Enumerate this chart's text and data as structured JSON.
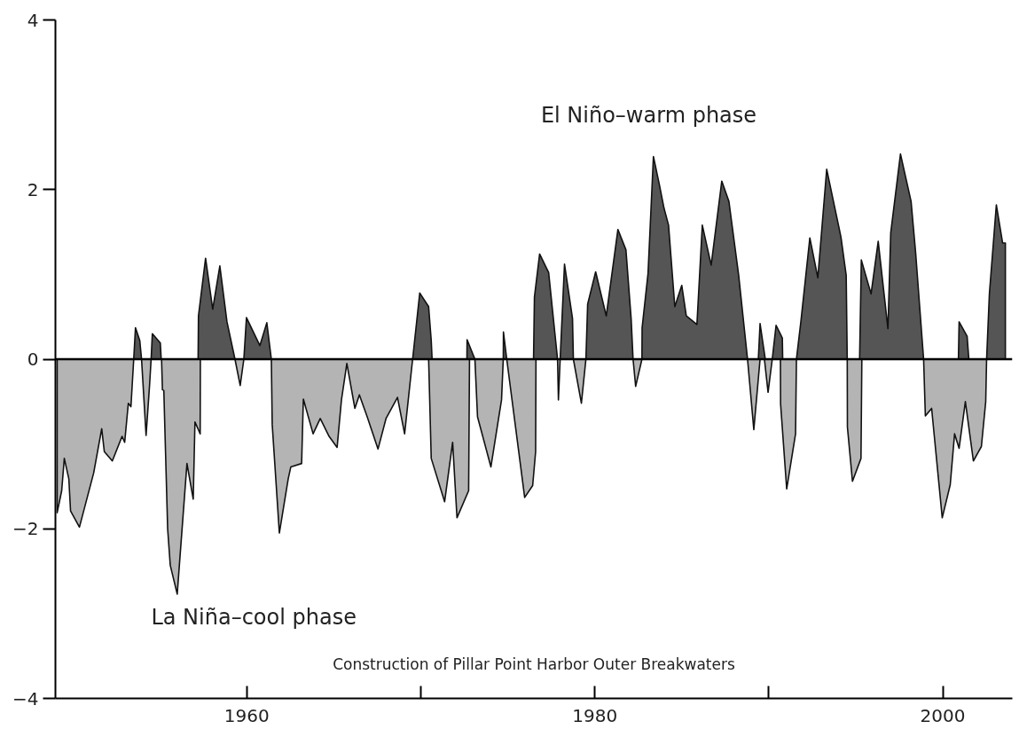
{
  "chart_data": {
    "type": "area",
    "xlim": [
      1949,
      2004
    ],
    "ylim": [
      -4,
      4
    ],
    "xticks": [
      1960,
      {
        "value": 1970,
        "label": null
      },
      1980,
      {
        "value": 1990,
        "label": null
      },
      2000
    ],
    "yticks": [
      -4,
      -2,
      0,
      2,
      4
    ],
    "grid": false,
    "ref_lines": [
      {
        "axis": "y",
        "value": 0,
        "color": "#000000"
      }
    ],
    "annotations": [
      "Construction of Pillar Point Harbor Outer Breakwaters"
    ],
    "series": [
      {
        "name": "El Niño–warm phase",
        "color": "#555555",
        "x": [
          1953.5,
          1953.6,
          1953.85,
          1953.95,
          1954.21,
          1954.5,
          1954.57,
          1955.03,
          1955.08,
          1957.2,
          1957.22,
          1957.63,
          1958.04,
          1958.45,
          1958.86,
          1959.32,
          1959.83,
          1959.98,
          1960.75,
          1961.15,
          1961.41,
          1969.53,
          1969.94,
          1970.45,
          1970.6,
          1970.65,
          1972.65,
          1972.66,
          1973.11,
          1974.74,
          1974.75,
          1974.94,
          1976.48,
          1976.53,
          1976.83,
          1977.35,
          1977.86,
          1978.01,
          1978.26,
          1978.72,
          1978.77,
          1979.49,
          1979.59,
          1980.05,
          1980.66,
          1981.33,
          1981.79,
          1982.09,
          1982.2,
          1982.71,
          1982.72,
          1983.06,
          1983.37,
          1983.73,
          1983.98,
          1984.24,
          1984.6,
          1985.0,
          1985.26,
          1985.87,
          1986.18,
          1986.69,
          1987.3,
          1987.71,
          1988.27,
          1988.78,
          1989.4,
          1989.5,
          1989.8,
          1990.2,
          1990.42,
          1990.78,
          1990.8,
          1991.59,
          1991.85,
          1992.36,
          1992.82,
          1993.33,
          1994.15,
          1994.45,
          1994.51,
          1995.22,
          1995.32,
          1995.88,
          1996.29,
          1996.85,
          1997.01,
          1997.57,
          1998.18,
          1998.44,
          1998.9,
          2000.9,
          2000.94,
          2001.4,
          2001.5,
          2002.52,
          2002.68,
          2003.08,
          2003.44,
          2003.6
        ],
        "values": [
          0,
          0.37,
          0.22,
          0,
          0,
          0,
          0.3,
          0.19,
          0,
          0,
          0.51,
          1.19,
          0.59,
          1.1,
          0.44,
          0,
          0,
          0.49,
          0.16,
          0.43,
          0,
          0,
          0.78,
          0.62,
          0.22,
          0,
          0,
          0.23,
          0,
          0,
          0.32,
          0,
          0,
          0.73,
          1.24,
          1.02,
          0,
          0,
          1.12,
          0.48,
          0,
          0,
          0.65,
          1.03,
          0.51,
          1.53,
          1.29,
          0.48,
          0,
          0,
          0.37,
          1.01,
          2.39,
          2.04,
          1.78,
          1.58,
          0.62,
          0.87,
          0.51,
          0.41,
          1.58,
          1.11,
          2.1,
          1.86,
          0.99,
          0,
          0,
          0.42,
          0,
          0,
          0.4,
          0.25,
          0,
          0,
          0.45,
          1.43,
          0.96,
          2.24,
          1.44,
          0.99,
          0,
          0,
          1.17,
          0.77,
          1.39,
          0.36,
          1.49,
          2.42,
          1.86,
          1.26,
          0,
          0,
          0.44,
          0.27,
          0,
          0,
          0.77,
          1.82,
          1.37,
          1.37
        ]
      },
      {
        "name": "La Niña–cool phase",
        "color": "#b4b4b4",
        "x": [
          1949.1,
          1949.36,
          1949.51,
          1949.77,
          1949.87,
          1950.38,
          1951.2,
          1951.66,
          1951.81,
          1952.27,
          1952.83,
          1952.98,
          1953.19,
          1953.34,
          1953.5,
          1953.95,
          1954.21,
          1954.41,
          1954.5,
          1955.1,
          1955.15,
          1955.23,
          1955.45,
          1955.6,
          1956.0,
          1956.56,
          1956.92,
          1957.02,
          1957.32,
          1957.33,
          1959.32,
          1959.62,
          1959.83,
          1961.41,
          1961.46,
          1961.87,
          1962.38,
          1962.53,
          1963.15,
          1963.25,
          1963.81,
          1964.22,
          1964.73,
          1965.19,
          1965.44,
          1965.75,
          1966.21,
          1966.47,
          1966.92,
          1967.54,
          1968.0,
          1968.66,
          1969.07,
          1969.53,
          1970.45,
          1970.6,
          1971.37,
          1971.83,
          1972.08,
          1972.75,
          1972.8,
          1973.11,
          1973.26,
          1974.03,
          1974.64,
          1974.74,
          1974.94,
          1975.97,
          1976.43,
          1976.6,
          1976.62,
          1977.86,
          1977.91,
          1978.01,
          1978.77,
          1979.23,
          1979.49,
          1982.2,
          1982.35,
          1982.71,
          1988.78,
          1989.14,
          1989.5,
          1989.75,
          1989.96,
          1990.2,
          1990.67,
          1990.68,
          1991.03,
          1991.54,
          1991.59,
          1994.51,
          1994.52,
          1994.81,
          1995.3,
          1995.35,
          1998.9,
          1999.0,
          1999.36,
          1999.97,
          2000.43,
          2000.68,
          2000.94,
          2001.3,
          2001.76,
          2002.22,
          2002.47,
          2002.52
        ],
        "values": [
          -1.81,
          -1.55,
          -1.17,
          -1.41,
          -1.79,
          -1.98,
          -1.34,
          -0.82,
          -1.09,
          -1.2,
          -0.91,
          -0.98,
          -0.52,
          -0.56,
          0,
          0,
          -0.9,
          -0.31,
          0,
          0,
          -0.36,
          -0.37,
          -2.0,
          -2.43,
          -2.77,
          -1.23,
          -1.65,
          -0.74,
          -0.88,
          0,
          0,
          -0.31,
          0,
          0,
          -0.77,
          -2.05,
          -1.41,
          -1.27,
          -1.23,
          -0.47,
          -0.88,
          -0.7,
          -0.91,
          -1.04,
          -0.48,
          -0.05,
          -0.58,
          -0.42,
          -0.68,
          -1.06,
          -0.7,
          -0.45,
          -0.88,
          0,
          0,
          -1.17,
          -1.68,
          -0.98,
          -1.87,
          -1.55,
          0,
          0,
          -0.68,
          -1.27,
          -0.48,
          0,
          0,
          -1.63,
          -1.49,
          -1.09,
          0,
          0,
          -0.48,
          0,
          0,
          -0.52,
          0,
          0,
          -0.32,
          0,
          0,
          -0.83,
          0,
          0,
          -0.39,
          0,
          0,
          -0.53,
          -1.53,
          -0.88,
          0,
          0,
          -0.8,
          -1.44,
          -1.17,
          0,
          0,
          -0.67,
          -0.58,
          -1.87,
          -1.48,
          -0.88,
          -1.05,
          -0.5,
          -1.2,
          -1.03,
          -0.5,
          0
        ]
      }
    ]
  }
}
